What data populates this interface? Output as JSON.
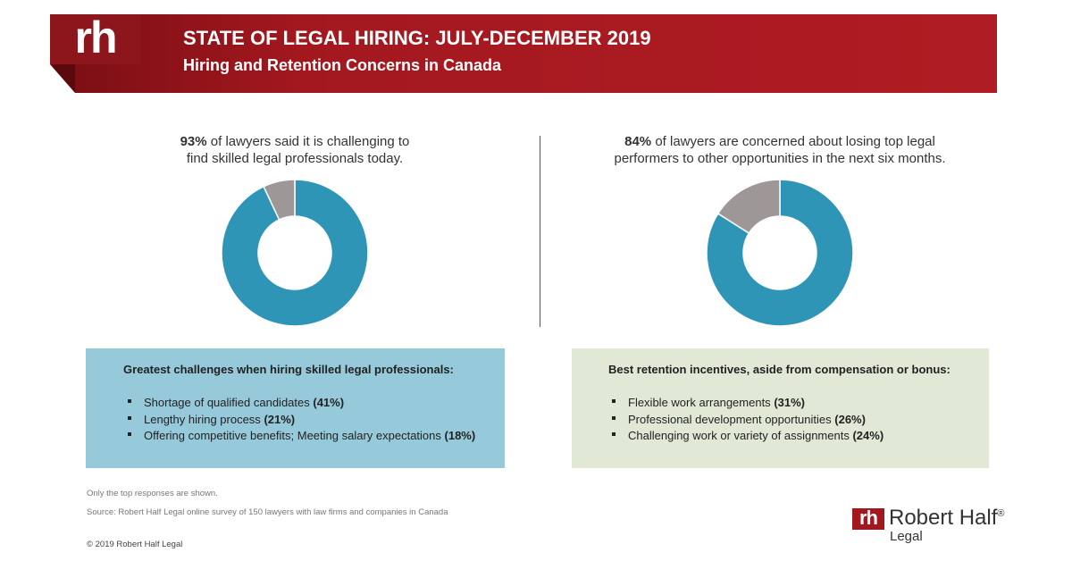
{
  "header": {
    "logo": "rh",
    "title": "STATE OF LEGAL HIRING: JULY-DECEMBER 2019",
    "subtitle": "Hiring and Retention Concerns in Canada"
  },
  "chart_data": [
    {
      "type": "pie",
      "donut": true,
      "values": [
        93,
        7
      ],
      "value_labels": [
        "93%",
        null
      ],
      "colors": [
        "#2e95b7",
        "#9d9797"
      ],
      "caption_lines": [
        "of lawyers said it is challenging to",
        "find skilled legal professionals today."
      ]
    },
    {
      "type": "pie",
      "donut": true,
      "values": [
        84,
        16
      ],
      "value_labels": [
        "84%",
        null
      ],
      "colors": [
        "#2e95b7",
        "#9d9797"
      ],
      "caption_lines": [
        "of lawyers are concerned about losing top legal",
        "performers to other opportunities in the next six months."
      ]
    }
  ],
  "boxes": [
    {
      "title": "Greatest challenges when hiring skilled legal professionals:",
      "items": [
        {
          "text": "Shortage of qualified candidates",
          "pct": "(41%)"
        },
        {
          "text": "Lengthy hiring process",
          "pct": "(21%)"
        },
        {
          "text": "Offering competitive benefits; Meeting salary expectations",
          "pct": "(18%)"
        }
      ]
    },
    {
      "title": "Best retention incentives, aside from compensation or bonus:",
      "items": [
        {
          "text": "Flexible work arrangements",
          "pct": "(31%)"
        },
        {
          "text": "Professional development opportunities",
          "pct": "(26%)"
        },
        {
          "text": "Challenging work or variety of assignments",
          "pct": "(24%)"
        }
      ]
    }
  ],
  "footer": {
    "note": "Only the top responses are shown.",
    "source": "Source: Robert Half Legal online survey of 150 lawyers with law firms and companies in Canada",
    "copyright": "© 2019 Robert Half Legal",
    "brand_mark": "rh",
    "brand_name": "Robert Half",
    "brand_reg": "®",
    "brand_sub": "Legal"
  }
}
